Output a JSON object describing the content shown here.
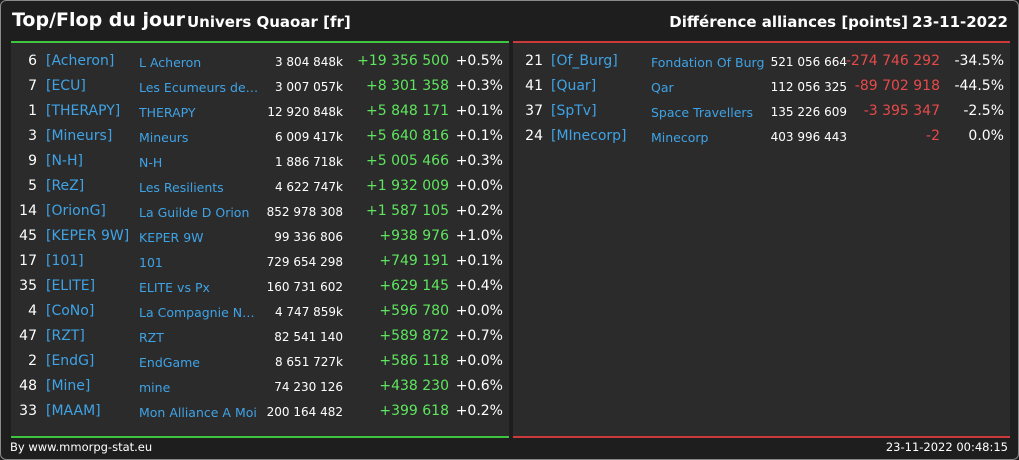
{
  "header": {
    "title": "Top/Flop du jour",
    "universe": "Univers Quaoar [fr]",
    "subtitle": "Différence alliances [points]",
    "date": "23-11-2022"
  },
  "colors": {
    "positive": "#5ee65e",
    "negative": "#e84a4a",
    "tag": "#3fa3e6",
    "top_border": "#3ec43e",
    "flop_border": "#cc3b3b"
  },
  "top": [
    {
      "rank": "6",
      "tag": "[Acheron]",
      "name": "L Acheron",
      "points": "3 804 848k",
      "delta": "+19 356 500",
      "pct": "+0.5%"
    },
    {
      "rank": "7",
      "tag": "[ECU]",
      "name": "Les Ecumeurs de G...",
      "points": "3 007 057k",
      "delta": "+8 301 358",
      "pct": "+0.3%"
    },
    {
      "rank": "1",
      "tag": "[THERAPY]",
      "name": "THERAPY",
      "points": "12 920 848k",
      "delta": "+5 848 171",
      "pct": "+0.1%"
    },
    {
      "rank": "3",
      "tag": "[Mineurs]",
      "name": "Mineurs",
      "points": "6 009 417k",
      "delta": "+5 640 816",
      "pct": "+0.1%"
    },
    {
      "rank": "9",
      "tag": "[N-H]",
      "name": "N-H",
      "points": "1 886 718k",
      "delta": "+5 005 466",
      "pct": "+0.3%"
    },
    {
      "rank": "5",
      "tag": "[ReZ]",
      "name": "Les Resilients",
      "points": "4 622 747k",
      "delta": "+1 932 009",
      "pct": "+0.0%"
    },
    {
      "rank": "14",
      "tag": "[OrionG]",
      "name": "La Guilde D Orion",
      "points": "852 978 308",
      "delta": "+1 587 105",
      "pct": "+0.2%"
    },
    {
      "rank": "45",
      "tag": "[KEPER 9W]",
      "name": "KEPER 9W",
      "points": "99 336 806",
      "delta": "+938 976",
      "pct": "+1.0%"
    },
    {
      "rank": "17",
      "tag": "[101]",
      "name": "101",
      "points": "729 654 298",
      "delta": "+749 191",
      "pct": "+0.1%"
    },
    {
      "rank": "35",
      "tag": "[ELITE]",
      "name": "ELITE vs Px",
      "points": "160 731 602",
      "delta": "+629 145",
      "pct": "+0.4%"
    },
    {
      "rank": "4",
      "tag": "[CoNo]",
      "name": "La Compagnie Noire",
      "points": "4 747 859k",
      "delta": "+596 780",
      "pct": "+0.0%"
    },
    {
      "rank": "47",
      "tag": "[RZT]",
      "name": "RZT",
      "points": "82 541 140",
      "delta": "+589 872",
      "pct": "+0.7%"
    },
    {
      "rank": "2",
      "tag": "[EndG]",
      "name": "EndGame",
      "points": "8 651 727k",
      "delta": "+586 118",
      "pct": "+0.0%"
    },
    {
      "rank": "48",
      "tag": "[Mine]",
      "name": "mine",
      "points": "74 230 126",
      "delta": "+438 230",
      "pct": "+0.6%"
    },
    {
      "rank": "33",
      "tag": "[MAAM]",
      "name": "Mon Alliance A Moi",
      "points": "200 164 482",
      "delta": "+399 618",
      "pct": "+0.2%"
    }
  ],
  "flop": [
    {
      "rank": "21",
      "tag": "[Of_Burg]",
      "name": "Fondation Of Burg",
      "points": "521 056 664",
      "delta": "-274 746 292",
      "pct": "-34.5%"
    },
    {
      "rank": "41",
      "tag": "[Quar]",
      "name": "Qar",
      "points": "112 056 325",
      "delta": "-89 702 918",
      "pct": "-44.5%"
    },
    {
      "rank": "37",
      "tag": "[SpTv]",
      "name": "Space Travellers",
      "points": "135 226 609",
      "delta": "-3 395 347",
      "pct": "-2.5%"
    },
    {
      "rank": "24",
      "tag": "[MInecorp]",
      "name": "Minecorp",
      "points": "403 996 443",
      "delta": "-2",
      "pct": "0.0%"
    }
  ],
  "footer": {
    "credit": "By www.mmorpg-stat.eu",
    "timestamp": "23-11-2022 00:48:15"
  }
}
